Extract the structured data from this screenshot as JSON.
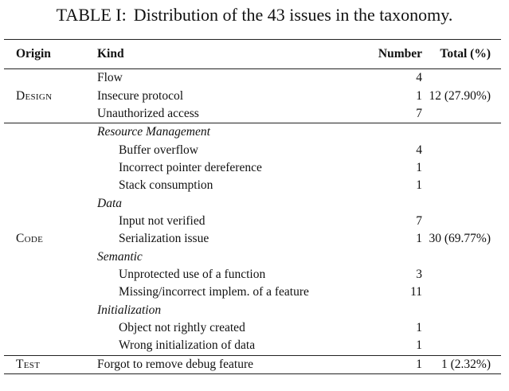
{
  "caption": {
    "label": "TABLE I:",
    "text": "Distribution of the 43 issues in the taxonomy."
  },
  "table": {
    "headers": {
      "origin": "Origin",
      "kind": "Kind",
      "number": "Number",
      "total": "Total (%)"
    },
    "design": {
      "origin": "Design",
      "total": "12 (27.90%)",
      "rows": [
        {
          "kind": "Flow",
          "number": "4"
        },
        {
          "kind": "Insecure protocol",
          "number": "1"
        },
        {
          "kind": "Unauthorized access",
          "number": "7"
        }
      ]
    },
    "code": {
      "origin": "Code",
      "total": "30 (69.77%)",
      "categories": [
        {
          "name": "Resource Management",
          "rows": [
            {
              "kind": "Buffer overflow",
              "number": "4"
            },
            {
              "kind": "Incorrect pointer dereference",
              "number": "1"
            },
            {
              "kind": "Stack consumption",
              "number": "1"
            }
          ]
        },
        {
          "name": "Data",
          "rows": [
            {
              "kind": "Input not verified",
              "number": "7"
            },
            {
              "kind": "Serialization issue",
              "number": "1"
            }
          ]
        },
        {
          "name": "Semantic",
          "rows": [
            {
              "kind": "Unprotected use of a function",
              "number": "3"
            },
            {
              "kind": "Missing/incorrect implem. of a feature",
              "number": "11"
            }
          ]
        },
        {
          "name": "Initialization",
          "rows": [
            {
              "kind": "Object not rightly created",
              "number": "1"
            },
            {
              "kind": "Wrong initialization of data",
              "number": "1"
            }
          ]
        }
      ]
    },
    "test": {
      "origin": "Test",
      "total": "1 (2.32%)",
      "rows": [
        {
          "kind": "Forgot to remove debug feature",
          "number": "1"
        }
      ]
    }
  }
}
